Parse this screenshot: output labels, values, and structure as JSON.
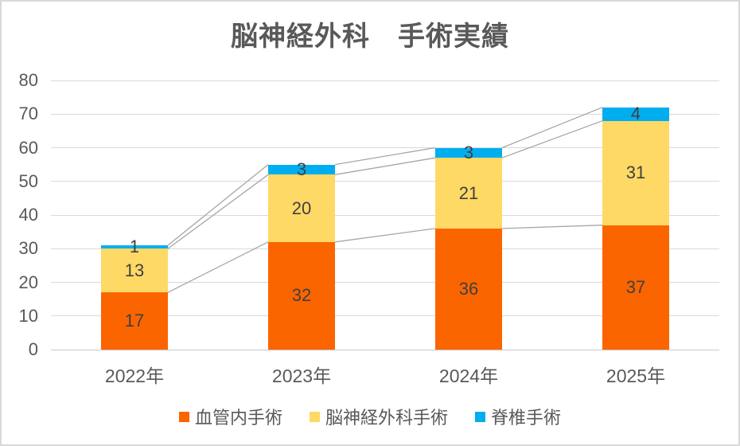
{
  "chart_data": {
    "type": "bar",
    "stacked": true,
    "title": "脳神経外科　手術実績",
    "categories": [
      "2022年",
      "2023年",
      "2024年",
      "2025年"
    ],
    "series": [
      {
        "name": "血管内手術",
        "color": "#FB6500",
        "values": [
          17,
          32,
          36,
          37
        ]
      },
      {
        "name": "脳神経外科手術",
        "color": "#FFD966",
        "values": [
          13,
          20,
          21,
          31
        ]
      },
      {
        "name": "脊椎手術",
        "color": "#00AEEF",
        "values": [
          1,
          3,
          3,
          4
        ]
      }
    ],
    "totals": [
      31,
      55,
      60,
      72
    ],
    "ylim": [
      0,
      80
    ],
    "y_ticks": [
      0,
      10,
      20,
      30,
      40,
      50,
      60,
      70,
      80
    ],
    "grid": true,
    "series_lines": true,
    "legend_position": "bottom",
    "data_labels": "center"
  },
  "colors": {
    "title_text": "#595959",
    "axis_text": "#595959",
    "data_label_text": "#404040",
    "gridline": "#D9D9D9",
    "series_line": "#A6A6A6",
    "chart_border": "#D9D9D9",
    "background": "#FFFFFF"
  }
}
